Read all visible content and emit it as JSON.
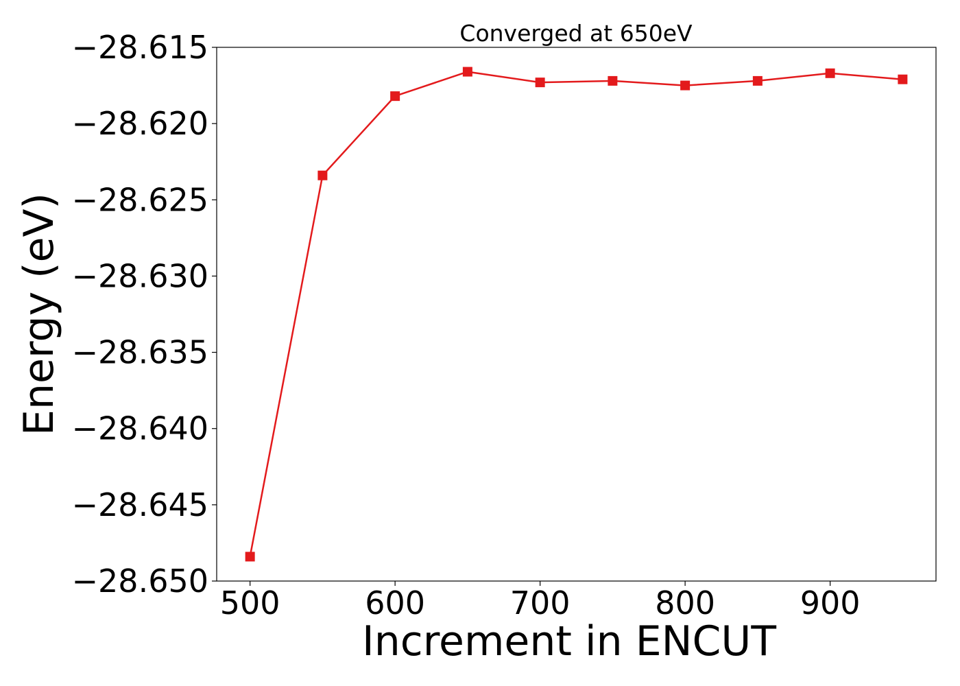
{
  "chart_data": {
    "type": "line",
    "title": "Converged at 650eV",
    "xlabel": "Increment in ENCUT",
    "ylabel": "Energy (eV)",
    "xlim": [
      477,
      973
    ],
    "ylim": [
      -28.65,
      -28.615
    ],
    "x_ticks": [
      500,
      600,
      700,
      800,
      900
    ],
    "x_tick_labels": [
      "500",
      "600",
      "700",
      "800",
      "900"
    ],
    "y_ticks": [
      -28.615,
      -28.62,
      -28.625,
      -28.63,
      -28.635,
      -28.64,
      -28.645,
      -28.65
    ],
    "y_tick_labels": [
      "−28.615",
      "−28.620",
      "−28.625",
      "−28.630",
      "−28.635",
      "−28.640",
      "−28.645",
      "−28.650"
    ],
    "grid": false,
    "series": [
      {
        "color": "#e31a1c",
        "marker": "square",
        "x": [
          500,
          550,
          600,
          650,
          700,
          750,
          800,
          850,
          900,
          950
        ],
        "y": [
          -28.6484,
          -28.6234,
          -28.6182,
          -28.6166,
          -28.6173,
          -28.6172,
          -28.6175,
          -28.6172,
          -28.6167,
          -28.6171
        ]
      }
    ]
  }
}
